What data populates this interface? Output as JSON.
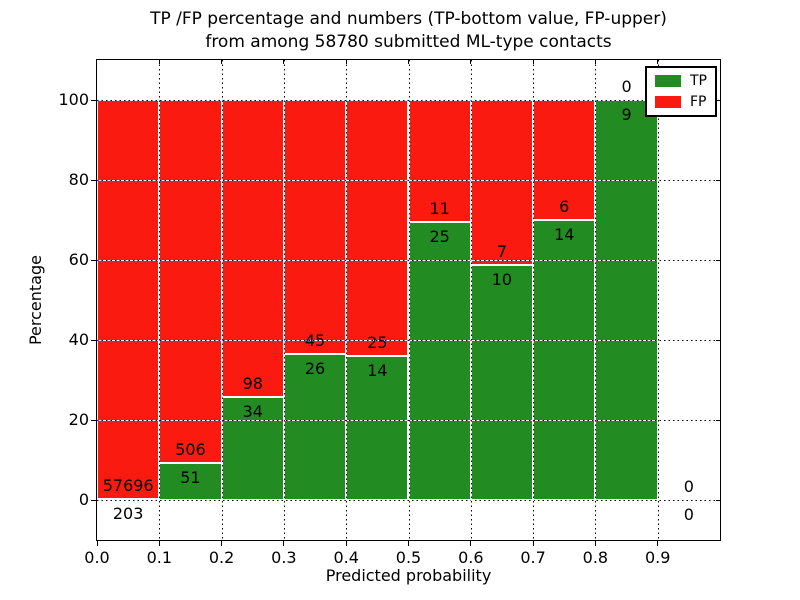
{
  "title": {
    "line1": "TP /FP percentage and numbers (TP-bottom value, FP-upper)",
    "line2": "from among 58780 submitted ML-type contacts"
  },
  "axes": {
    "xlabel": "Predicted probability",
    "ylabel": "Percentage",
    "xtick_labels": [
      "0.0",
      "0.1",
      "0.2",
      "0.3",
      "0.4",
      "0.5",
      "0.6",
      "0.7",
      "0.8",
      "0.9"
    ],
    "ytick_labels": [
      "0",
      "20",
      "40",
      "60",
      "80",
      "100"
    ]
  },
  "legend": {
    "items": [
      {
        "label": "TP",
        "color": "#228b22"
      },
      {
        "label": "FP",
        "color": "#fb1a10"
      }
    ]
  },
  "colors": {
    "tp": "#228b22",
    "fp": "#fb1a10",
    "grid_dot": "#000000",
    "frame": "#000000"
  },
  "chart_data": {
    "type": "bar",
    "stacked": true,
    "normalized": "percent",
    "title": "TP /FP percentage and numbers (TP-bottom value, FP-upper) from among 58780 submitted ML-type contacts",
    "xlabel": "Predicted probability",
    "ylabel": "Percentage",
    "xlim": [
      0.0,
      1.0
    ],
    "ylim": [
      -10,
      110
    ],
    "grid": true,
    "legend_position": "upper right",
    "bin_width": 0.1,
    "bin_edges": [
      0.0,
      0.1,
      0.2,
      0.3,
      0.4,
      0.5,
      0.6,
      0.7,
      0.8,
      0.9,
      1.0
    ],
    "categories": [
      "0.0-0.1",
      "0.1-0.2",
      "0.2-0.3",
      "0.3-0.4",
      "0.4-0.5",
      "0.5-0.6",
      "0.6-0.7",
      "0.7-0.8",
      "0.8-0.9",
      "0.9-1.0"
    ],
    "series": [
      {
        "name": "TP",
        "color": "#228b22",
        "counts": [
          203,
          51,
          34,
          26,
          14,
          25,
          10,
          14,
          9,
          0
        ]
      },
      {
        "name": "FP",
        "color": "#fb1a10",
        "counts": [
          57696,
          506,
          98,
          45,
          25,
          11,
          7,
          6,
          0,
          0
        ]
      }
    ],
    "tp_percent": [
      0.35,
      9.16,
      25.76,
      36.62,
      35.9,
      69.44,
      58.82,
      70.0,
      100.0,
      null
    ],
    "total_submitted": 58780
  }
}
